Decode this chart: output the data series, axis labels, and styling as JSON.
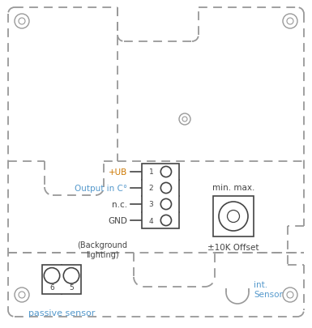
{
  "bg_color": "#ffffff",
  "dash_color": "#999999",
  "solid_color": "#444444",
  "text_color_blue": "#5599cc",
  "text_color_orange": "#cc7700",
  "text_color_dark": "#444444",
  "terminal_labels": [
    "+UB",
    "Output in C°",
    "n.c.",
    "GND"
  ],
  "terminal_label_colors": [
    "orange",
    "blue",
    "dark",
    "dark"
  ],
  "terminal_numbers": [
    "1",
    "2",
    "3",
    "4"
  ],
  "passive_numbers": [
    "6",
    "5"
  ],
  "label_passive": "passive sensor",
  "label_int_sensor": "int.\nSensor",
  "label_min_max": "min. max.",
  "label_offset": "±10K Offset",
  "label_bg_lighting": "(Background\nlighting)"
}
